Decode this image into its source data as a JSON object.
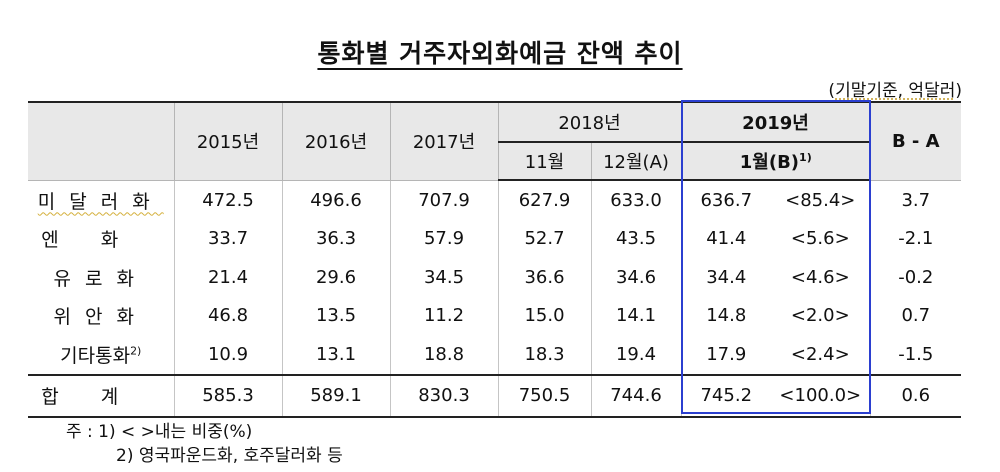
{
  "title": "통화별 거주자외화예금 잔액 추이",
  "unit_prefix": "(",
  "unit_text": "기말기준, 억달러",
  "unit_suffix": ")",
  "header": {
    "y2015": "2015년",
    "y2016": "2016년",
    "y2017": "2017년",
    "y2018": "2018년",
    "nov": "11월",
    "dec": "12월(A)",
    "y2019": "2019년",
    "jan": "1월(B)",
    "jan_sup": "1)",
    "diff": "B - A"
  },
  "rows": [
    {
      "label": "미달러화",
      "v2015": "472.5",
      "v2016": "496.6",
      "v2017": "707.9",
      "nov": "627.9",
      "dec": "633.0",
      "jan": "636.7",
      "share": "<85.4>",
      "diff": "3.7"
    },
    {
      "label": "엔화",
      "v2015": "33.7",
      "v2016": "36.3",
      "v2017": "57.9",
      "nov": "52.7",
      "dec": "43.5",
      "jan": "41.4",
      "share": "<5.6>",
      "diff": "-2.1"
    },
    {
      "label": "유로화",
      "v2015": "21.4",
      "v2016": "29.6",
      "v2017": "34.5",
      "nov": "36.6",
      "dec": "34.6",
      "jan": "34.4",
      "share": "<4.6>",
      "diff": "-0.2"
    },
    {
      "label": "위안화",
      "v2015": "46.8",
      "v2016": "13.5",
      "v2017": "11.2",
      "nov": "15.0",
      "dec": "14.1",
      "jan": "14.8",
      "share": "<2.0>",
      "diff": "0.7"
    },
    {
      "label": "기타통화",
      "label_sup": "2)",
      "v2015": "10.9",
      "v2016": "13.1",
      "v2017": "18.8",
      "nov": "18.3",
      "dec": "19.4",
      "jan": "17.9",
      "share": "<2.4>",
      "diff": "-1.5"
    },
    {
      "label": "합계",
      "v2015": "585.3",
      "v2016": "589.1",
      "v2017": "830.3",
      "nov": "750.5",
      "dec": "744.6",
      "jan": "745.2",
      "share": "<100.0>",
      "diff": "0.6"
    }
  ],
  "notes": {
    "n1": "주 : 1) <   >내는 비중(%)",
    "n2": "2) 영국파운드화, 호주달러화 등"
  }
}
